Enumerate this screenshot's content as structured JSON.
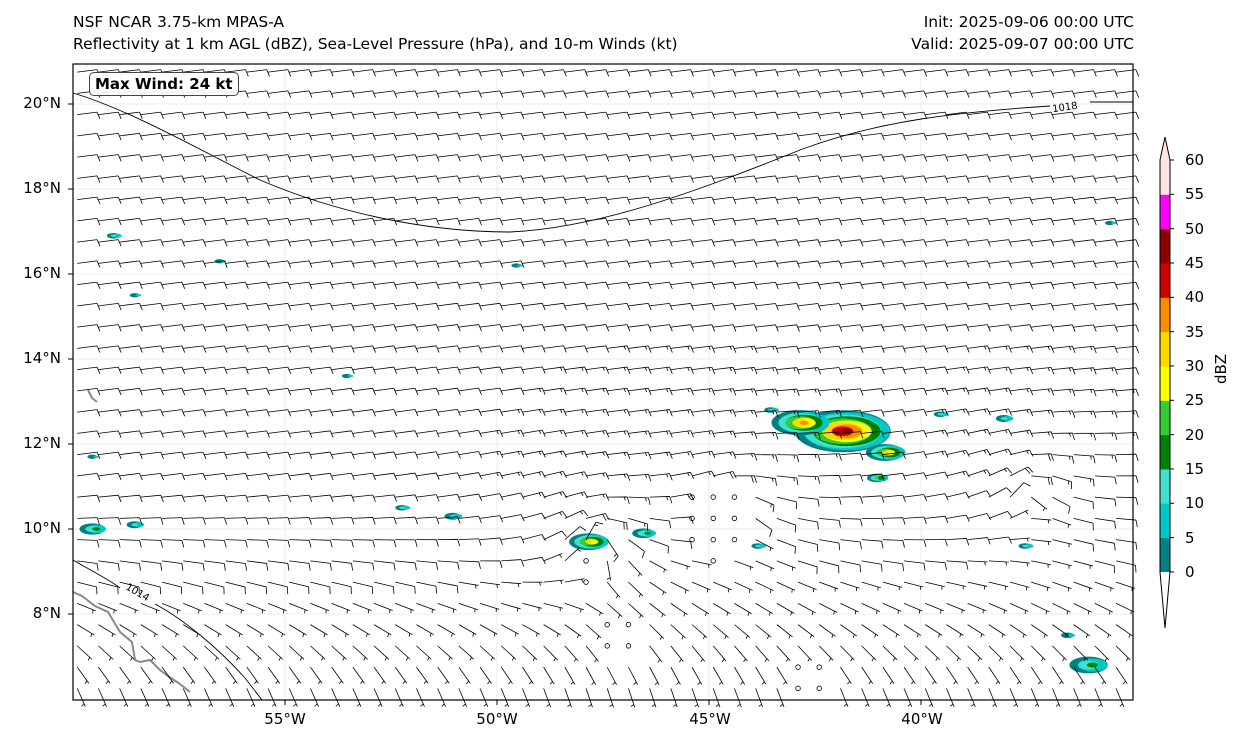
{
  "header": {
    "title": "NSF NCAR 3.75-km MPAS-A",
    "subtitle": "Reflectivity at 1 km AGL (dBZ), Sea-Level Pressure (hPa), and 10-m Winds (kt)",
    "init": "Init: 2025-09-06 00:00 UTC",
    "valid": "Valid: 2025-09-07 00:00 UTC"
  },
  "max_wind_label": "Max Wind: 24 kt",
  "lat_labels": [
    "20°N",
    "18°N",
    "16°N",
    "14°N",
    "12°N",
    "10°N",
    "8°N"
  ],
  "lon_labels": [
    "55°W",
    "50°W",
    "45°W",
    "40°W"
  ],
  "contour_labels": [
    "1018",
    "1014"
  ],
  "colorbar": {
    "label": "dBZ",
    "ticks": [
      "0",
      "5",
      "10",
      "15",
      "20",
      "25",
      "30",
      "35",
      "40",
      "45",
      "50",
      "55",
      "60"
    ],
    "colors": [
      "#008080",
      "#00c8c8",
      "#40e0d0",
      "#008000",
      "#32cd32",
      "#ffff00",
      "#ffd700",
      "#ff8c00",
      "#cc0000",
      "#8b0000",
      "#ff00ff",
      "#ffe4e1"
    ]
  }
}
